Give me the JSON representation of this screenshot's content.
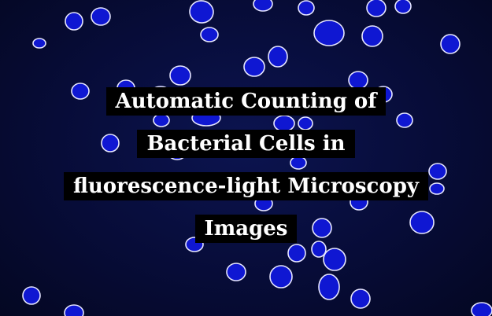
{
  "title": {
    "lines": [
      "Automatic Counting of",
      "Bacterial Cells in",
      "fluorescence-light Microscopy",
      "Images"
    ]
  },
  "colors": {
    "background": "#070c38",
    "cell_fill": "#0f17d2",
    "cell_outline": "#e6e6ff",
    "caption_bg": "#000000",
    "caption_text": "#ffffff"
  }
}
